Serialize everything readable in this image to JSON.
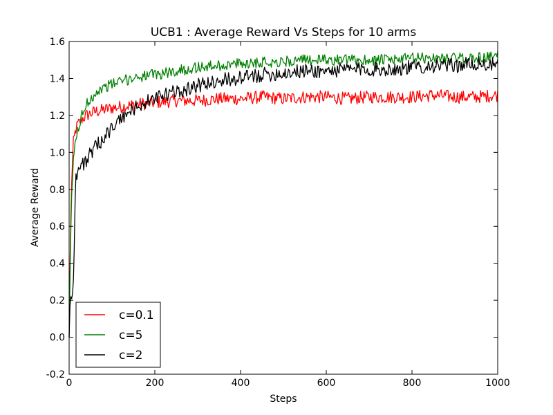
{
  "chart_data": {
    "type": "line",
    "title": "UCB1 : Average Reward Vs Steps for 10 arms",
    "xlabel": "Steps",
    "ylabel": "Average Reward",
    "xlim": [
      0,
      1000
    ],
    "ylim": [
      -0.2,
      1.6
    ],
    "xticks": [
      0,
      200,
      400,
      600,
      800,
      1000
    ],
    "xtick_labels": [
      "0",
      "200",
      "400",
      "600",
      "800",
      "1000"
    ],
    "yticks": [
      -0.2,
      0.0,
      0.2,
      0.4,
      0.6,
      0.8,
      1.0,
      1.2,
      1.4,
      1.6
    ],
    "ytick_labels": [
      "-0.2",
      "0.0",
      "0.2",
      "0.4",
      "0.6",
      "0.8",
      "1.0",
      "1.2",
      "1.4",
      "1.6"
    ],
    "grid": false,
    "legend_position": "lower-left",
    "series": [
      {
        "name": "c=0.1",
        "color": "#ff0000",
        "x": [
          0,
          3,
          6,
          10,
          15,
          20,
          30,
          40,
          50,
          60,
          80,
          100,
          130,
          160,
          200,
          250,
          300,
          350,
          400,
          450,
          500,
          550,
          600,
          650,
          700,
          750,
          800,
          850,
          900,
          950,
          1000
        ],
        "y": [
          0.0,
          0.55,
          0.85,
          1.05,
          1.12,
          1.15,
          1.18,
          1.2,
          1.21,
          1.22,
          1.23,
          1.24,
          1.25,
          1.26,
          1.27,
          1.28,
          1.28,
          1.29,
          1.29,
          1.3,
          1.29,
          1.3,
          1.3,
          1.29,
          1.3,
          1.3,
          1.3,
          1.31,
          1.3,
          1.3,
          1.31
        ],
        "noise": 0.035
      },
      {
        "name": "c=5",
        "color": "#008000",
        "x": [
          0,
          3,
          6,
          10,
          15,
          20,
          30,
          40,
          50,
          60,
          80,
          100,
          130,
          160,
          200,
          250,
          300,
          350,
          400,
          450,
          500,
          550,
          600,
          650,
          700,
          750,
          800,
          850,
          900,
          950,
          1000
        ],
        "y": [
          0.0,
          0.45,
          0.75,
          0.98,
          1.05,
          1.12,
          1.2,
          1.26,
          1.29,
          1.32,
          1.35,
          1.37,
          1.39,
          1.41,
          1.42,
          1.44,
          1.46,
          1.47,
          1.48,
          1.49,
          1.49,
          1.5,
          1.5,
          1.5,
          1.5,
          1.5,
          1.51,
          1.51,
          1.51,
          1.51,
          1.52
        ],
        "noise": 0.03
      },
      {
        "name": "c=2",
        "color": "#000000",
        "x": [
          0,
          3,
          6,
          10,
          15,
          20,
          30,
          40,
          50,
          60,
          80,
          100,
          130,
          160,
          200,
          250,
          300,
          350,
          400,
          450,
          500,
          550,
          600,
          650,
          700,
          750,
          800,
          850,
          900,
          950,
          1000
        ],
        "y": [
          0.0,
          0.25,
          0.22,
          0.3,
          0.85,
          0.9,
          0.93,
          0.96,
          0.99,
          1.02,
          1.08,
          1.13,
          1.2,
          1.25,
          1.29,
          1.33,
          1.36,
          1.39,
          1.4,
          1.42,
          1.43,
          1.44,
          1.44,
          1.45,
          1.45,
          1.45,
          1.46,
          1.47,
          1.47,
          1.48,
          1.47
        ],
        "noise": 0.04
      }
    ]
  }
}
